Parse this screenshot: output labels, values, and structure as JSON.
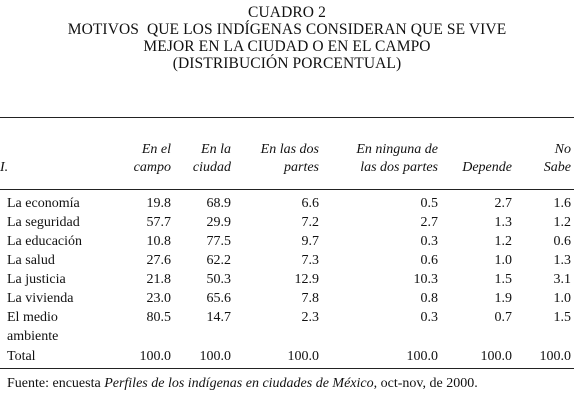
{
  "title": {
    "line1": "CUADRO 2",
    "line2": "MOTIVOS  QUE LOS INDÍGENAS CONSIDERAN QUE SE VIVE",
    "line3": "MEJOR EN LA CIUDAD O EN EL CAMPO",
    "line4": "(DISTRIBUCIÓN PORCENTUAL)"
  },
  "table": {
    "stub_header": "I.",
    "columns": [
      {
        "line1": "En el",
        "line2": "campo"
      },
      {
        "line1": "En la",
        "line2": "ciudad"
      },
      {
        "line1": "En las dos",
        "line2": "partes"
      },
      {
        "line1": "En ninguna de",
        "line2": "las dos partes"
      },
      {
        "line1": "",
        "line2": "Depende"
      },
      {
        "line1": "No",
        "line2": "Sabe"
      }
    ],
    "rows": [
      {
        "label1": "La economía",
        "label2": "",
        "values": [
          "19.8",
          "68.9",
          "6.6",
          "0.5",
          "2.7",
          "1.6"
        ]
      },
      {
        "label1": "La seguridad",
        "label2": "",
        "values": [
          "57.7",
          "29.9",
          "7.2",
          "2.7",
          "1.3",
          "1.2"
        ]
      },
      {
        "label1": "La educación",
        "label2": "",
        "values": [
          "10.8",
          "77.5",
          "9.7",
          "0.3",
          "1.2",
          "0.6"
        ]
      },
      {
        "label1": "La salud",
        "label2": "",
        "values": [
          "27.6",
          "62.2",
          "7.3",
          "0.6",
          "1.0",
          "1.3"
        ]
      },
      {
        "label1": "La justicia",
        "label2": "",
        "values": [
          "21.8",
          "50.3",
          "12.9",
          "10.3",
          "1.5",
          "3.1"
        ]
      },
      {
        "label1": "La vivienda",
        "label2": "",
        "values": [
          "23.0",
          "65.6",
          "7.8",
          "0.8",
          "1.9",
          "1.0"
        ]
      },
      {
        "label1": "El medio",
        "label2": "ambiente",
        "values": [
          "80.5",
          "14.7",
          "2.3",
          "0.3",
          "0.7",
          "1.5"
        ]
      }
    ],
    "total": {
      "label": "Total",
      "values": [
        "100.0",
        "100.0",
        "100.0",
        "100.0",
        "100.0",
        "100.0"
      ]
    }
  },
  "source": {
    "prefix": "Fuente: encuesta ",
    "italic": "Perfiles de los indígenas en ciudades de México",
    "suffix": ", oct-nov, de 2000."
  }
}
